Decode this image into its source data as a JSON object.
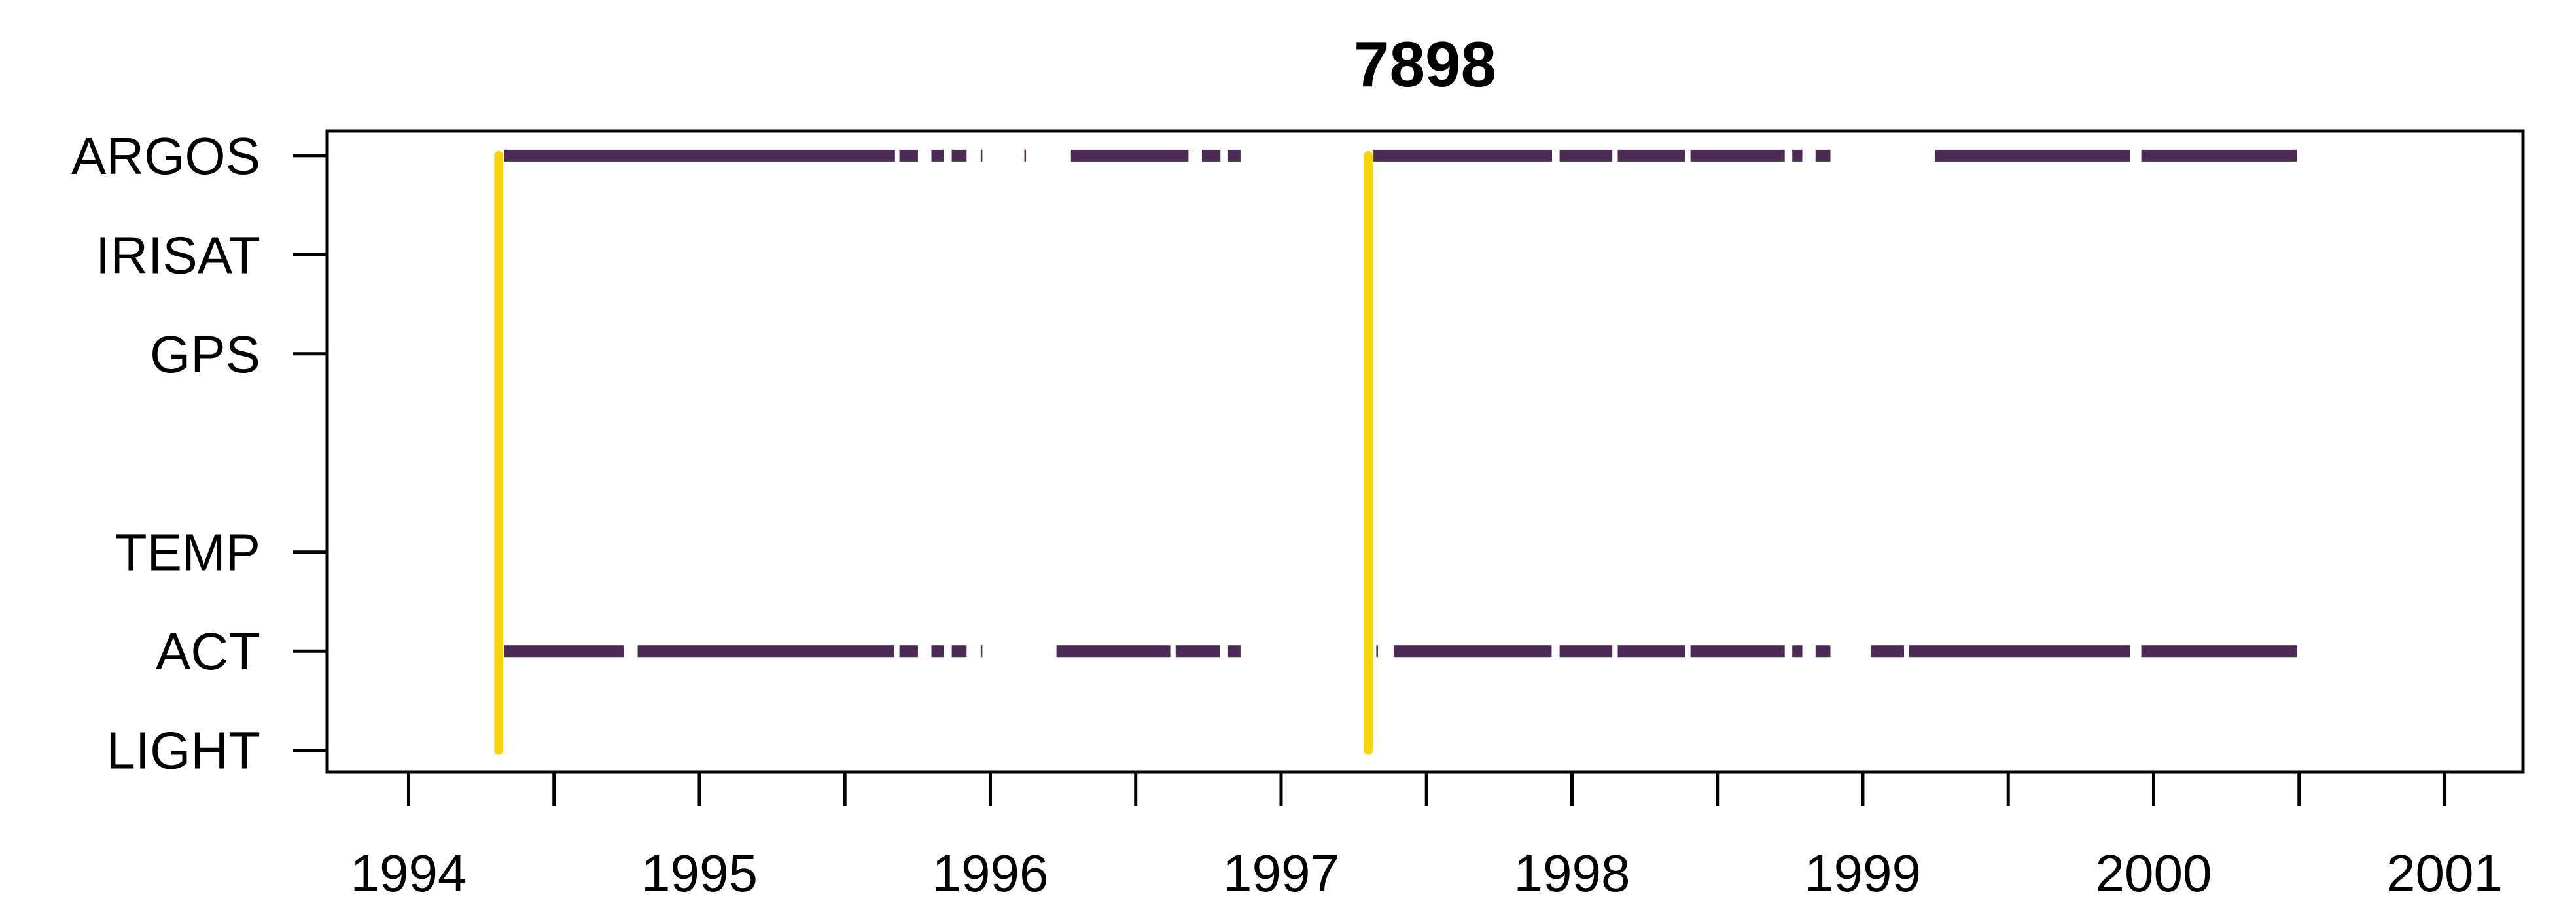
{
  "chart_data": {
    "type": "scatter",
    "title": "7898",
    "xlabel": "",
    "ylabel": "",
    "xlim": [
      1993.72,
      2001.27
    ],
    "x_ticks_major": [
      "1994",
      "1995",
      "1996",
      "1997",
      "1998",
      "1999",
      "2000",
      "2001"
    ],
    "x_ticks_minor": [
      1994.5,
      1995.5,
      1996.5,
      1997.5,
      1998.5,
      1999.5,
      2000.5
    ],
    "y_categories": [
      {
        "label": "ARGOS",
        "pos": 7
      },
      {
        "label": "IRISAT",
        "pos": 6
      },
      {
        "label": "GPS",
        "pos": 5
      },
      {
        "label": "TEMP",
        "pos": 3
      },
      {
        "label": "ACT",
        "pos": 2
      },
      {
        "label": "LIGHT",
        "pos": 1
      }
    ],
    "ylim": [
      0.78,
      7.25
    ],
    "grid": false,
    "colors": {
      "markers": "#4b2a55",
      "deployment": "#f5d60a",
      "frame": "#000000"
    },
    "deployment_lines": [
      {
        "x": 1994.31,
        "y_from": 1,
        "y_to": 7
      },
      {
        "x": 1997.3,
        "y_from": 1,
        "y_to": 7
      }
    ],
    "series": [
      {
        "name": "ARGOS",
        "y": 7,
        "segments": [
          [
            1994.33,
            1995.67
          ],
          [
            1995.69,
            1995.75
          ],
          [
            1995.8,
            1995.84
          ],
          [
            1995.87,
            1995.92
          ],
          [
            1996.28,
            1996.68
          ],
          [
            1996.73,
            1996.79
          ],
          [
            1996.82,
            1996.86
          ],
          [
            1997.32,
            1997.93
          ],
          [
            1997.96,
            1998.14
          ],
          [
            1998.16,
            1998.39
          ],
          [
            1998.41,
            1998.73
          ],
          [
            1998.76,
            1998.79
          ],
          [
            1998.84,
            1998.89
          ],
          [
            1999.25,
            1999.92
          ],
          [
            1999.96,
            2000.49
          ]
        ],
        "points": [
          1995.97,
          1996.12
        ]
      },
      {
        "name": "ACT",
        "y": 2,
        "segments": [
          [
            1994.33,
            1994.74
          ],
          [
            1994.79,
            1995.67
          ],
          [
            1995.69,
            1995.75
          ],
          [
            1995.8,
            1995.84
          ],
          [
            1995.87,
            1995.92
          ],
          [
            1996.23,
            1996.62
          ],
          [
            1996.64,
            1996.79
          ],
          [
            1996.82,
            1996.86
          ],
          [
            1997.39,
            1997.93
          ],
          [
            1997.96,
            1998.14
          ],
          [
            1998.16,
            1998.39
          ],
          [
            1998.41,
            1998.73
          ],
          [
            1998.76,
            1998.79
          ],
          [
            1998.84,
            1998.89
          ],
          [
            1999.03,
            1999.14
          ],
          [
            1999.16,
            1999.92
          ],
          [
            1999.96,
            2000.49
          ]
        ],
        "points": [
          1995.97,
          1997.33
        ]
      }
    ]
  }
}
